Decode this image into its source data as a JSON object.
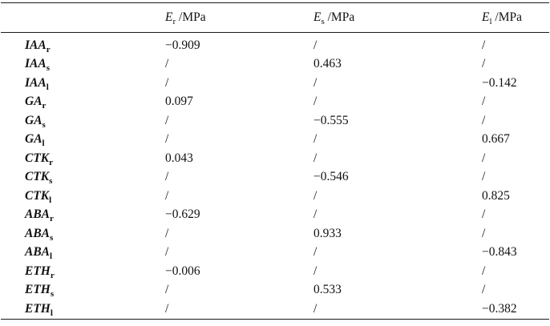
{
  "table": {
    "header": {
      "columns": [
        {
          "symbol": "E",
          "sub": "r",
          "unit": " /MPa"
        },
        {
          "symbol": "E",
          "sub": "s",
          "unit": " /MPa"
        },
        {
          "symbol": "E",
          "sub": "l",
          "unit": " /MPa"
        }
      ]
    },
    "rows": [
      {
        "label": "IAA",
        "sub": "r",
        "values": [
          "−0.909",
          "/",
          "/"
        ]
      },
      {
        "label": "IAA",
        "sub": "s",
        "values": [
          "/",
          "0.463",
          "/"
        ]
      },
      {
        "label": "IAA",
        "sub": "l",
        "values": [
          "/",
          "/",
          "−0.142"
        ]
      },
      {
        "label": "GA",
        "sub": "r",
        "values": [
          "0.097",
          "/",
          "/"
        ]
      },
      {
        "label": "GA",
        "sub": "s",
        "values": [
          "/",
          "−0.555",
          "/"
        ]
      },
      {
        "label": "GA",
        "sub": "l",
        "values": [
          "/",
          "/",
          "0.667"
        ]
      },
      {
        "label": "CTK",
        "sub": "r",
        "values": [
          "0.043",
          "/",
          "/"
        ]
      },
      {
        "label": "CTK",
        "sub": "s",
        "values": [
          "/",
          "−0.546",
          "/"
        ]
      },
      {
        "label": "CTK",
        "sub": "l",
        "values": [
          "/",
          "/",
          "0.825"
        ]
      },
      {
        "label": "ABA",
        "sub": "r",
        "values": [
          "−0.629",
          "/",
          "/"
        ]
      },
      {
        "label": "ABA",
        "sub": "s",
        "values": [
          "/",
          "0.933",
          "/"
        ]
      },
      {
        "label": "ABA",
        "sub": "l",
        "values": [
          "/",
          "/",
          "−0.843"
        ]
      },
      {
        "label": "ETH",
        "sub": "r",
        "values": [
          "−0.006",
          "/",
          "/"
        ]
      },
      {
        "label": "ETH",
        "sub": "s",
        "values": [
          "/",
          "0.533",
          "/"
        ]
      },
      {
        "label": "ETH",
        "sub": "l",
        "values": [
          "/",
          "/",
          "−0.382"
        ]
      }
    ],
    "empty_marker": "/"
  },
  "colors": {
    "text": "#111111",
    "rule": "#1a1a1a",
    "background": "#ffffff"
  }
}
